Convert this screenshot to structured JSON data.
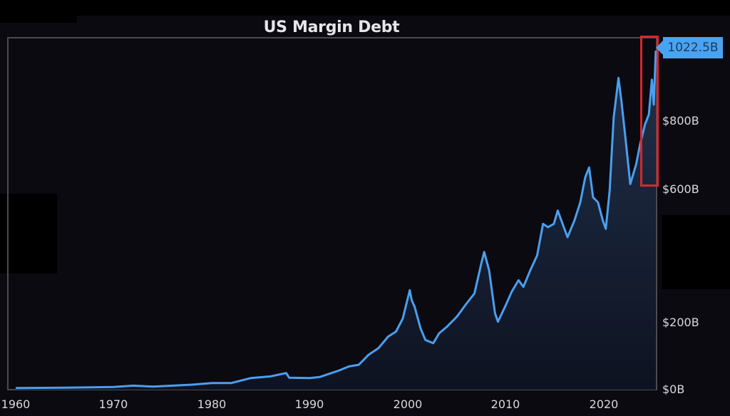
{
  "chart_data": {
    "type": "area",
    "title": "US Margin Debt",
    "xlabel": "",
    "ylabel": "",
    "x_ticks": [
      "1960",
      "1970",
      "1980",
      "1990",
      "2000",
      "2010",
      "2020"
    ],
    "y_ticks": [
      "$0B",
      "$200B",
      "$600B",
      "$800B"
    ],
    "ylim": [
      0,
      1050
    ],
    "xlim": [
      1960,
      2025.4
    ],
    "grid": false,
    "legend": null,
    "series": [
      {
        "name": "US Margin Debt ($B)",
        "color": "#4a9ff0",
        "x": [
          1960,
          1965,
          1970,
          1972,
          1974,
          1976,
          1978,
          1980,
          1982,
          1984,
          1986,
          1987.6,
          1987.9,
          1990,
          1991,
          1993,
          1994,
          1995,
          1996,
          1997,
          1998,
          1998.8,
          1999.5,
          2000.2,
          2000.4,
          2000.7,
          2001.3,
          2001.8,
          2002.6,
          2003.2,
          2004,
          2005,
          2006,
          2006.8,
          2007.5,
          2007.8,
          2008.3,
          2008.9,
          2009.2,
          2010,
          2010.6,
          2011.3,
          2011.8,
          2012.5,
          2013.2,
          2013.8,
          2014.3,
          2014.9,
          2015.3,
          2015.8,
          2016.3,
          2017,
          2017.6,
          2018.1,
          2018.5,
          2018.9,
          2019.4,
          2019.9,
          2020.2,
          2020.6,
          2021,
          2021.5,
          2021.8,
          2022.2,
          2022.7,
          2022.9,
          2023.3,
          2023.7,
          2024.2,
          2024.6,
          2024.9,
          2025.1,
          2025.3
        ],
        "values": [
          5,
          6,
          8,
          12,
          9,
          12,
          15,
          20,
          20,
          35,
          40,
          50,
          36,
          35,
          38,
          58,
          70,
          75,
          105,
          125,
          160,
          175,
          215,
          300,
          270,
          250,
          185,
          150,
          140,
          170,
          190,
          220,
          260,
          290,
          380,
          415,
          360,
          230,
          205,
          255,
          295,
          330,
          310,
          360,
          405,
          500,
          490,
          500,
          540,
          500,
          460,
          510,
          565,
          640,
          670,
          580,
          565,
          510,
          485,
          600,
          820,
          940,
          870,
          760,
          620,
          640,
          680,
          740,
          800,
          830,
          935,
          860,
          1022.5
        ],
        "last_value_label": "1022.5B"
      }
    ],
    "annotations": [
      {
        "type": "highlight-box",
        "color": "#d9262b",
        "x_range": [
          2023.3,
          2025.3
        ],
        "y_range": [
          600,
          1022.5
        ]
      },
      {
        "type": "value-callout",
        "text": "1022.5B",
        "color": "#4aa3f0"
      }
    ]
  }
}
